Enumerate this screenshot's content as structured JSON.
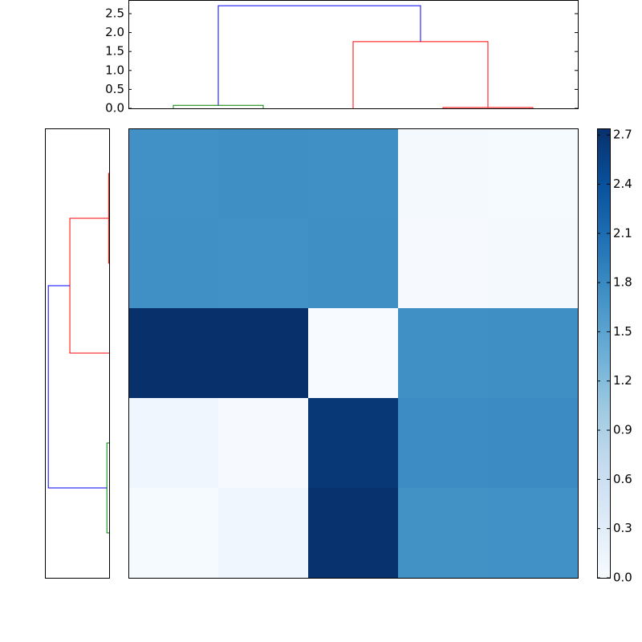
{
  "chart_data": [
    {
      "type": "dendrogram",
      "orientation": "top",
      "xlim": [
        -0.5,
        4.5
      ],
      "ylim": [
        0,
        2.86
      ],
      "yticks": [
        {
          "value": 0,
          "label": "0.0"
        },
        0.5,
        {
          "value": 1,
          "label": "1.0"
        },
        1.5,
        {
          "value": 2,
          "label": "2.0"
        },
        2.5
      ],
      "links": [
        {
          "color": "#008000",
          "icoord": [
            0,
            0,
            1,
            1
          ],
          "dcoord": [
            0,
            0.08,
            0.08,
            0
          ]
        },
        {
          "color": "#ff0000",
          "icoord": [
            3,
            3,
            4,
            4
          ],
          "dcoord": [
            0,
            0.02,
            0.02,
            0
          ]
        },
        {
          "color": "#ff0000",
          "icoord": [
            2,
            2,
            3.5,
            3.5
          ],
          "dcoord": [
            0,
            1.76,
            1.76,
            0.02
          ]
        },
        {
          "color": "#0000ff",
          "icoord": [
            0.5,
            0.5,
            2.75,
            2.75
          ],
          "dcoord": [
            0.08,
            2.71,
            2.71,
            1.76
          ]
        }
      ]
    },
    {
      "type": "dendrogram",
      "orientation": "left",
      "ylim": [
        -0.5,
        4.5
      ],
      "xlim": [
        0,
        2.86
      ],
      "links": [
        {
          "color": "#ff0000",
          "icoord": [
            0,
            0,
            1,
            1
          ],
          "dcoord": [
            0,
            0.02,
            0.02,
            0
          ]
        },
        {
          "color": "#008000",
          "icoord": [
            3,
            3,
            4,
            4
          ],
          "dcoord": [
            0,
            0.1,
            0.1,
            0
          ]
        },
        {
          "color": "#ff0000",
          "icoord": [
            0.5,
            0.5,
            2,
            2
          ],
          "dcoord": [
            0.02,
            1.75,
            1.75,
            0
          ]
        },
        {
          "color": "#0000ff",
          "icoord": [
            1.25,
            1.25,
            3.5,
            3.5
          ],
          "dcoord": [
            1.75,
            2.71,
            2.71,
            0.1
          ]
        }
      ]
    },
    {
      "type": "heatmap",
      "values": [
        [
          1.72,
          1.74,
          1.73,
          0.04,
          0.03
        ],
        [
          1.73,
          1.72,
          1.74,
          0.02,
          0.04
        ],
        [
          2.73,
          2.73,
          0.0,
          1.73,
          1.74
        ],
        [
          0.1,
          0.02,
          2.66,
          1.76,
          1.77
        ],
        [
          0.03,
          0.1,
          2.72,
          1.71,
          1.72
        ]
      ],
      "colormap": [
        "#f7fbff",
        "#deebf7",
        "#c6dbef",
        "#9ecae1",
        "#6baed6",
        "#4292c6",
        "#2171b5",
        "#08519c",
        "#08306b"
      ],
      "clim": [
        0,
        2.74
      ],
      "cticks": [
        {
          "value": 0,
          "label": "0.0"
        },
        0.3,
        0.6,
        0.9,
        1.2,
        1.5,
        1.8,
        2.1,
        2.4,
        2.7
      ]
    }
  ]
}
